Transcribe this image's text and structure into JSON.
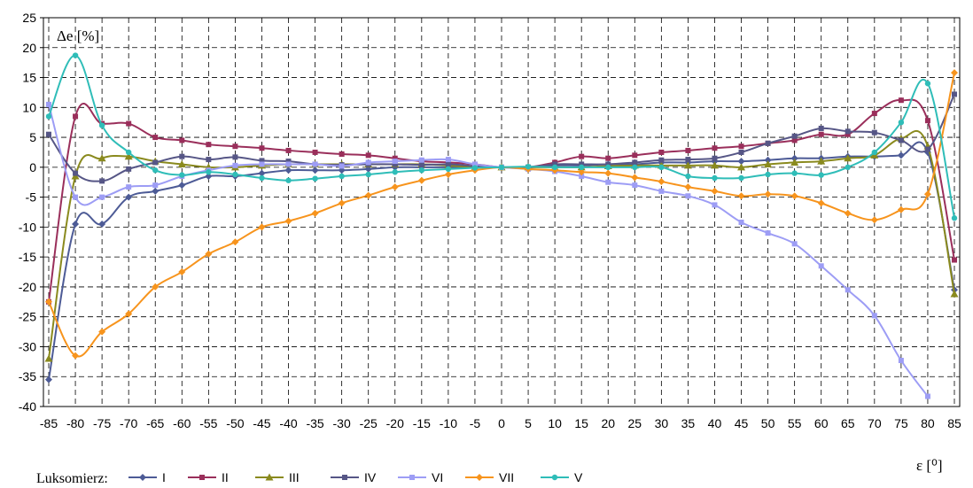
{
  "chart_data": {
    "type": "line",
    "ylabel": "Δe  [%]",
    "xlabel": "ε [⁰]",
    "x": [
      -85,
      -80,
      -75,
      -70,
      -65,
      -60,
      -55,
      -50,
      -45,
      -40,
      -35,
      -30,
      -25,
      -20,
      -15,
      -10,
      -5,
      0,
      5,
      10,
      15,
      20,
      25,
      30,
      35,
      40,
      45,
      50,
      55,
      60,
      65,
      70,
      75,
      80,
      85
    ],
    "xlim": [
      -85,
      85
    ],
    "ylim": [
      -40,
      25
    ],
    "xticks": [
      -85,
      -80,
      -75,
      -70,
      -65,
      -60,
      -55,
      -50,
      -45,
      -40,
      -35,
      -30,
      -25,
      -20,
      -15,
      -10,
      -5,
      0,
      5,
      10,
      15,
      20,
      25,
      30,
      35,
      40,
      45,
      50,
      55,
      60,
      65,
      70,
      75,
      80,
      85
    ],
    "yticks": [
      25,
      20,
      15,
      10,
      5,
      0,
      -5,
      -10,
      -15,
      -20,
      -25,
      -30,
      -35,
      -40
    ],
    "grid": true,
    "legend_title": "Luksomierz:",
    "legend_position": "bottom-left",
    "series": [
      {
        "name": "I",
        "color": "#4d5b96",
        "marker": "diamond",
        "values": [
          -35.5,
          -9.5,
          -9.5,
          -5,
          -4,
          -3,
          -1.5,
          -1.5,
          -1,
          -0.5,
          -0.5,
          -0.5,
          -0.3,
          0,
          0,
          0,
          0,
          0,
          0,
          0.3,
          0.3,
          0.5,
          0.5,
          0.8,
          0.8,
          1.0,
          1.0,
          1.2,
          1.5,
          1.5,
          1.8,
          1.8,
          2.0,
          2.5,
          -20.5
        ]
      },
      {
        "name": "II",
        "color": "#9a2f5b",
        "marker": "square",
        "values": [
          -22.5,
          8.5,
          7.3,
          7.3,
          5,
          4.5,
          3.8,
          3.5,
          3.2,
          2.8,
          2.5,
          2.2,
          2,
          1.5,
          1,
          0.8,
          0.5,
          0,
          0,
          0.8,
          1.8,
          1.5,
          2,
          2.5,
          2.8,
          3.2,
          3.5,
          4,
          4.5,
          5.5,
          5.5,
          9,
          11.2,
          7.8,
          -15.5
        ]
      },
      {
        "name": "III",
        "color": "#8a8a1e",
        "marker": "triangle",
        "values": [
          -32,
          -1.5,
          1.5,
          1.8,
          1,
          0.5,
          0,
          0,
          0.3,
          0.5,
          0.5,
          0.5,
          0.5,
          0.5,
          0.5,
          0.3,
          0,
          0,
          0,
          0,
          0,
          0.2,
          0.3,
          0.3,
          0.3,
          0.3,
          0,
          0.5,
          0.8,
          1,
          1.5,
          2,
          4.8,
          3.5,
          -21.2
        ]
      },
      {
        "name": "IV",
        "color": "#565686",
        "marker": "square",
        "values": [
          5.5,
          -1,
          -2.3,
          -0.3,
          0.8,
          1.8,
          1.3,
          1.7,
          1.1,
          1,
          0.5,
          0.4,
          0.5,
          0.5,
          0.4,
          0.5,
          0.2,
          0,
          0,
          0.5,
          0.5,
          0.5,
          0.8,
          1.2,
          1.3,
          1.5,
          2.5,
          4,
          5.2,
          6.5,
          6,
          5.8,
          4.5,
          3,
          12.2
        ]
      },
      {
        "name": "VI",
        "color": "#9d9df5",
        "marker": "square",
        "values": [
          10.5,
          -5,
          -5,
          -3.3,
          -3,
          -1.5,
          -0.5,
          0.3,
          0.5,
          0.5,
          0.5,
          0.2,
          0.8,
          1,
          1.2,
          1.3,
          0.5,
          0,
          -0.3,
          -0.7,
          -1.5,
          -2.5,
          -3,
          -4,
          -4.8,
          -6.3,
          -9.2,
          -11,
          -12.8,
          -16.5,
          -20.5,
          -24.8,
          -32.3,
          -38.3,
          null
        ]
      },
      {
        "name": "VII",
        "color": "#f7941d",
        "marker": "diamond",
        "values": [
          -22.5,
          -31.5,
          -27.5,
          -24.5,
          -20,
          -17.5,
          -14.5,
          -12.5,
          -10,
          -9,
          -7.7,
          -6,
          -4.7,
          -3.3,
          -2.2,
          -1.2,
          -0.5,
          0,
          -0.3,
          -0.5,
          -0.8,
          -1,
          -1.7,
          -2.4,
          -3.3,
          -4,
          -4.8,
          -4.5,
          -4.8,
          -6,
          -7.7,
          -8.8,
          -7.1,
          -4.5,
          15.8
        ]
      },
      {
        "name": "V",
        "color": "#2fbdb8",
        "marker": "circle",
        "values": [
          8.5,
          18.7,
          7,
          2.5,
          -0.5,
          -1.3,
          -0.8,
          -1.2,
          -1.8,
          -2.2,
          -1.9,
          -1.5,
          -1.2,
          -0.8,
          -0.5,
          -0.3,
          -0.1,
          0,
          0.1,
          0,
          0,
          0,
          0,
          0,
          -1.5,
          -1.8,
          -1.8,
          -1.2,
          -1,
          -1.3,
          0,
          2.5,
          7.5,
          14,
          -8.5
        ]
      }
    ]
  }
}
